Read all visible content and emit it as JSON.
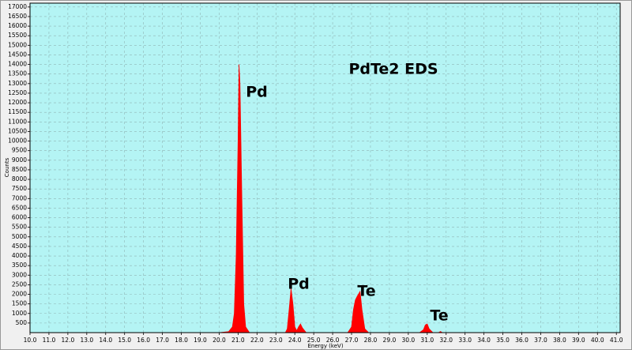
{
  "chart_data": {
    "type": "area",
    "annotations": [
      "PdTe2 EDS",
      "Pd",
      "Pd",
      "Te",
      "Te"
    ],
    "x_label": "Energy (keV)",
    "y_label": "Counts",
    "x": [
      10.0,
      20.0,
      20.5,
      20.7,
      20.8,
      20.9,
      21.0,
      21.05,
      21.1,
      21.2,
      21.3,
      21.4,
      21.6,
      23.5,
      23.6,
      23.7,
      23.8,
      23.9,
      24.0,
      24.1,
      24.2,
      24.3,
      24.4,
      24.6,
      26.8,
      27.0,
      27.1,
      27.2,
      27.3,
      27.45,
      27.55,
      27.7,
      27.9,
      30.6,
      30.8,
      30.9,
      31.0,
      31.1,
      31.3,
      31.6,
      31.7,
      31.8,
      41.0
    ],
    "values": [
      0,
      0,
      50,
      300,
      1000,
      4000,
      10000,
      14000,
      13000,
      7000,
      1500,
      300,
      0,
      0,
      200,
      1200,
      2300,
      1500,
      300,
      100,
      300,
      450,
      250,
      0,
      0,
      300,
      1200,
      1700,
      1900,
      2150,
      1200,
      200,
      0,
      0,
      150,
      400,
      450,
      200,
      0,
      0,
      60,
      0,
      0
    ],
    "color": "#ff0000",
    "background": "#b4f4f4",
    "grid": true,
    "xlim": [
      10,
      41.2
    ],
    "ylim": [
      0,
      17200
    ],
    "xticks": [
      {
        "value": 10,
        "label": "10.0"
      },
      {
        "value": 11,
        "label": "11.0"
      },
      {
        "value": 12,
        "label": "12.0"
      },
      {
        "value": 13,
        "label": "13.0"
      },
      {
        "value": 14,
        "label": "14.0"
      },
      {
        "value": 15,
        "label": "15.0"
      },
      {
        "value": 16,
        "label": "16.0"
      },
      {
        "value": 17,
        "label": "17.0"
      },
      {
        "value": 18,
        "label": "18.0"
      },
      {
        "value": 19,
        "label": "19.0"
      },
      {
        "value": 20,
        "label": "20.0"
      },
      {
        "value": 21,
        "label": "21.0"
      },
      {
        "value": 22,
        "label": "22.0"
      },
      {
        "value": 23,
        "label": "23.0"
      },
      {
        "value": 24,
        "label": "24.0"
      },
      {
        "value": 25,
        "label": "25.0"
      },
      {
        "value": 26,
        "label": "26.0"
      },
      {
        "value": 27,
        "label": "27.0"
      },
      {
        "value": 28,
        "label": "28.0"
      },
      {
        "value": 29,
        "label": "29.0"
      },
      {
        "value": 30,
        "label": "30.0"
      },
      {
        "value": 31,
        "label": "31.0"
      },
      {
        "value": 32,
        "label": "32.0"
      },
      {
        "value": 33,
        "label": "33.0"
      },
      {
        "value": 34,
        "label": "34.0"
      },
      {
        "value": 35,
        "label": "35.0"
      },
      {
        "value": 36,
        "label": "36.0"
      },
      {
        "value": 37,
        "label": "37.0"
      },
      {
        "value": 38,
        "label": "38.0"
      },
      {
        "value": 39,
        "label": "39.0"
      },
      {
        "value": 40,
        "label": "40.0"
      },
      {
        "value": 41,
        "label": "41.0"
      }
    ],
    "yticks": [
      500,
      1000,
      1500,
      2000,
      2500,
      3000,
      3500,
      4000,
      4500,
      5000,
      5500,
      6000,
      6500,
      7000,
      7500,
      8000,
      8500,
      9000,
      9500,
      10000,
      10500,
      11000,
      11500,
      12000,
      12500,
      13000,
      13500,
      14000,
      14500,
      15000,
      15500,
      16000,
      16500,
      17000
    ]
  }
}
